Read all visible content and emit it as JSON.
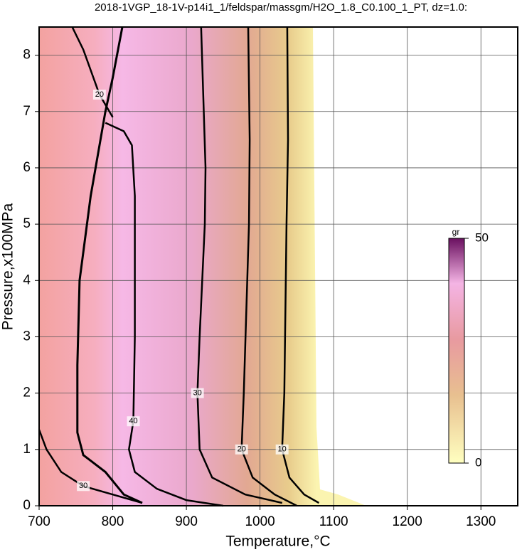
{
  "chart_data": {
    "type": "contour",
    "title": "2018-1VGP_18-1V-p14i1_1/feldspar/massgm/H2O_1.8_C0.100_1_PT, dz=1.0:",
    "xlabel": "Temperature,°C",
    "ylabel": "Pressure,x100MPa",
    "xlim": [
      700,
      1350
    ],
    "ylim": [
      0,
      8.5
    ],
    "xticks": [
      700,
      800,
      900,
      1000,
      1100,
      1200,
      1300
    ],
    "yticks": [
      0,
      1,
      2,
      3,
      4,
      5,
      6,
      7,
      8
    ],
    "grid": true,
    "line_color": "#000000",
    "contours": [
      {
        "level": 10,
        "x": [
          1037,
          1038,
          1036,
          1033,
          1030,
          1040,
          1060,
          1080
        ],
        "y": [
          8.5,
          6.5,
          5,
          2,
          1,
          0.5,
          0.2,
          0.05
        ]
      },
      {
        "level": 20,
        "x": [
          984,
          986,
          985,
          978,
          975,
          990,
          1020,
          1050
        ],
        "y": [
          8.5,
          6.5,
          5,
          2,
          1,
          0.5,
          0.2,
          0
        ]
      },
      {
        "level": 30,
        "x": [
          920,
          926,
          925,
          918,
          915,
          918,
          935,
          980,
          1030
        ],
        "y": [
          8.5,
          6,
          5,
          3,
          2,
          1,
          0.5,
          0.2,
          0.05
        ]
      },
      {
        "level": 40,
        "x": [
          790,
          815,
          826,
          830,
          830,
          828,
          822,
          830,
          860,
          900,
          950
        ],
        "y": [
          6.8,
          6.65,
          6.4,
          5.5,
          3,
          1.5,
          1,
          0.6,
          0.3,
          0.1,
          0
        ]
      },
      {
        "level": 20,
        "x": [
          745,
          760,
          782,
          800
        ],
        "y": [
          8.5,
          8.1,
          7.3,
          6.9
        ]
      },
      {
        "level": 30,
        "x": [
          700,
          710,
          730,
          760,
          800,
          840
        ],
        "y": [
          1.35,
          1,
          0.6,
          0.35,
          0.2,
          0.05
        ]
      }
    ],
    "boundary": {
      "x": [
        813,
        800,
        790,
        770,
        755,
        752,
        752,
        760,
        790,
        815,
        840
      ],
      "y": [
        8.5,
        7.6,
        7,
        5.5,
        4,
        2.5,
        1.3,
        0.9,
        0.6,
        0.2,
        0.05
      ]
    },
    "colorbar": {
      "label": "gr",
      "lim": [
        0,
        50
      ],
      "ticks": [
        0,
        50
      ]
    }
  }
}
